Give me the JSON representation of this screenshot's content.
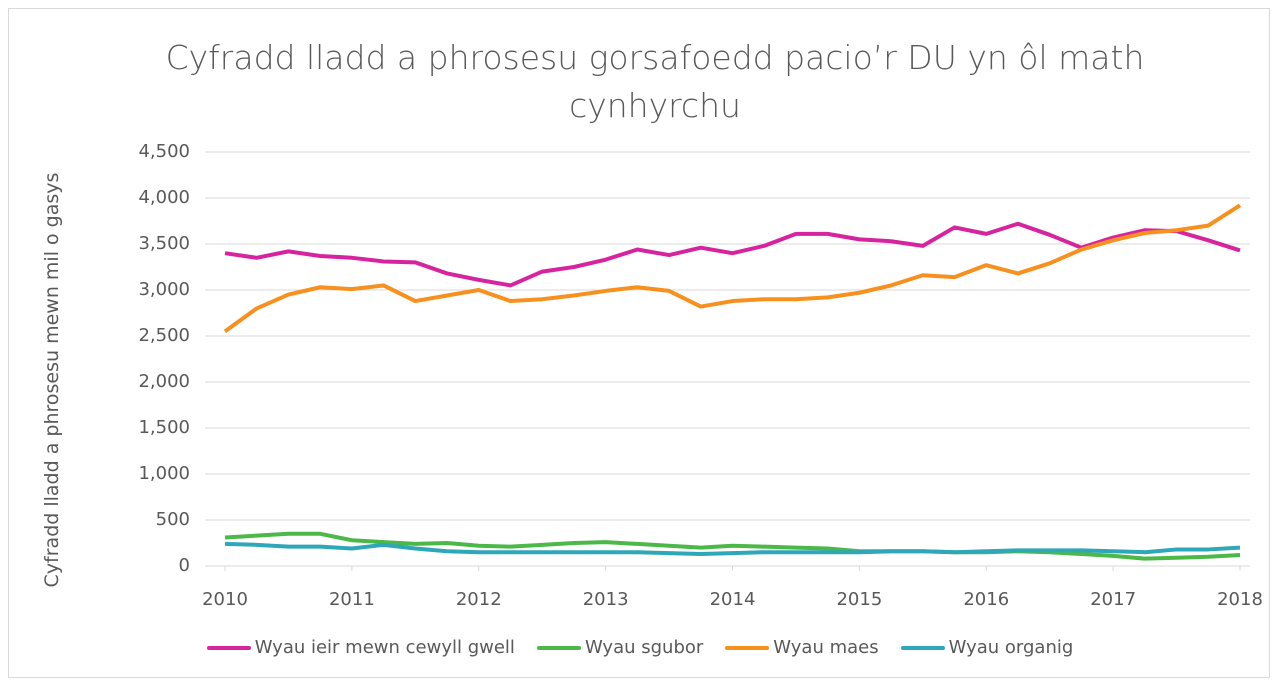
{
  "chart_data": {
    "type": "line",
    "title": "Cyfradd lladd a phrosesu gorsafoedd pacio’r DU yn ôl math cynhyrchu",
    "y_label": "Cyfradd lladd a phrosesu mewn mil o gasys",
    "x": [
      2010,
      2010.25,
      2010.5,
      2010.75,
      2011,
      2011.25,
      2011.5,
      2011.75,
      2012,
      2012.25,
      2012.5,
      2012.75,
      2013,
      2013.25,
      2013.5,
      2013.75,
      2014,
      2014.25,
      2014.5,
      2014.75,
      2015,
      2015.25,
      2015.5,
      2015.75,
      2016,
      2016.25,
      2016.5,
      2016.75,
      2017,
      2017.25,
      2017.5,
      2017.75,
      2018
    ],
    "xlim": [
      2010,
      2018
    ],
    "xticks": [
      2010,
      2011,
      2012,
      2013,
      2014,
      2015,
      2016,
      2017,
      2018
    ],
    "ylim": [
      0,
      4500
    ],
    "yticks": [
      0,
      500,
      {
        "value": 1000,
        "label": "1,000"
      },
      {
        "value": 1500,
        "label": "1,500"
      },
      {
        "value": 2000,
        "label": "2,000"
      },
      {
        "value": 2500,
        "label": "2,500"
      },
      {
        "value": 3000,
        "label": "3,000"
      },
      {
        "value": 3500,
        "label": "3,500"
      },
      {
        "value": 4000,
        "label": "4,000"
      },
      {
        "value": 4500,
        "label": "4,500"
      }
    ],
    "grid": true,
    "legend": "bottom",
    "series": [
      {
        "name": "Wyau ieir mewn cewyll gwell",
        "color": "#d6249f",
        "values": [
          3400,
          3350,
          3420,
          3370,
          3350,
          3310,
          3300,
          3180,
          3110,
          3050,
          3200,
          3250,
          3330,
          3440,
          3380,
          3460,
          3400,
          3480,
          3610,
          3610,
          3550,
          3530,
          3480,
          3680,
          3610,
          3720,
          3600,
          3460,
          3570,
          3650,
          3640,
          3540,
          3430
        ]
      },
      {
        "name": "Wyau sgubor",
        "color": "#4cb848",
        "values": [
          310,
          330,
          350,
          350,
          280,
          260,
          240,
          250,
          220,
          210,
          230,
          250,
          260,
          240,
          220,
          200,
          220,
          210,
          200,
          190,
          160,
          160,
          160,
          150,
          150,
          160,
          150,
          130,
          110,
          80,
          90,
          100,
          120
        ]
      },
      {
        "name": "Wyau maes",
        "color": "#f7901e",
        "values": [
          2550,
          2800,
          2950,
          3030,
          3010,
          3050,
          2880,
          2940,
          3000,
          2880,
          2900,
          2940,
          2990,
          3030,
          2990,
          2820,
          2880,
          2900,
          2900,
          2920,
          2970,
          3050,
          3160,
          3140,
          3270,
          3180,
          3290,
          3440,
          3540,
          3620,
          3650,
          3700,
          3920
        ]
      },
      {
        "name": "Wyau organig",
        "color": "#2ea7b8",
        "values": [
          240,
          230,
          210,
          210,
          190,
          230,
          190,
          160,
          150,
          150,
          150,
          150,
          150,
          150,
          140,
          130,
          140,
          150,
          150,
          150,
          150,
          160,
          160,
          150,
          160,
          170,
          170,
          170,
          160,
          150,
          180,
          180,
          200
        ]
      }
    ]
  }
}
